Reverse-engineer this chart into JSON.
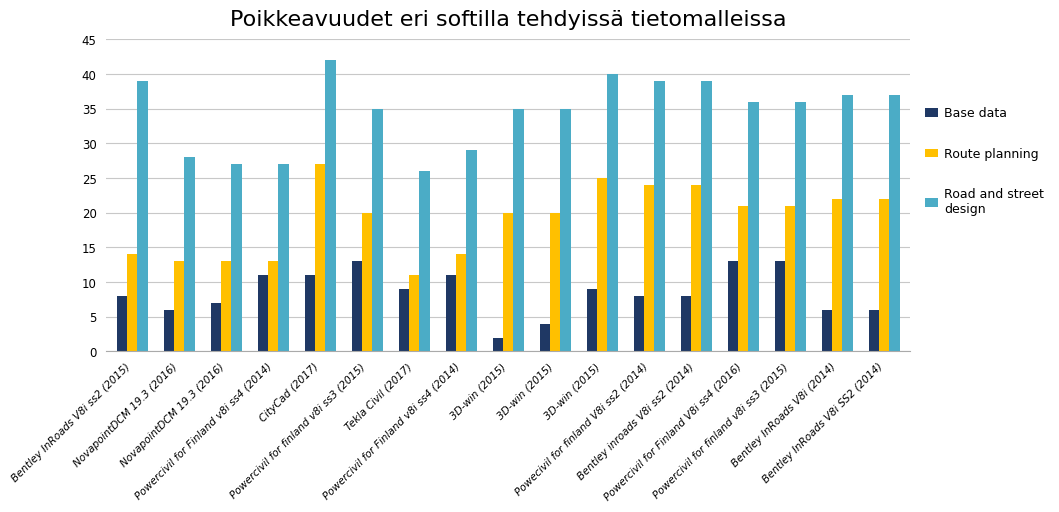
{
  "title": "Poikkeavuudet eri softilla tehdyissä tietomalleissa",
  "categories": [
    "Bentley InRoads V8i ss2 (2015)",
    "NovapointDCM 19.3 (2016)",
    "NovapointDCM 19.3 (2016)",
    "Powercivil for Finland v8i ss4 (2014)",
    "CityCad (2017)",
    "Powercivil for finland v8i ss3 (2015)",
    "Tekla Civil (2017)",
    "Powercivil for Finland v8i ss4 (2014)",
    "3D-win (2015)",
    "3D-win (2015)",
    "3D-win (2015)",
    "Powecivil for finland V8i ss2 (2014)",
    "Bentley inroads V8i ss2 (2014)",
    "Powercivil for Finland V8i ss4 (2016)",
    "Powercivil for finland v8i ss3 (2015)",
    "Bentley InRoads V8i (2014)",
    "Bentley InRoads V8i SS2 (2014)"
  ],
  "base_data": [
    8,
    6,
    7,
    11,
    11,
    13,
    9,
    11,
    2,
    4,
    9,
    8,
    8,
    13,
    13,
    6,
    6
  ],
  "route_planning": [
    14,
    13,
    13,
    13,
    27,
    20,
    11,
    14,
    20,
    20,
    25,
    24,
    24,
    21,
    21,
    22,
    22
  ],
  "road_street": [
    39,
    28,
    27,
    27,
    42,
    35,
    26,
    29,
    35,
    35,
    40,
    39,
    39,
    36,
    36,
    37,
    37
  ],
  "color_base": "#1f3864",
  "color_route": "#ffc000",
  "color_road": "#4bacc6",
  "ylim": [
    0,
    45
  ],
  "yticks": [
    0,
    5,
    10,
    15,
    20,
    25,
    30,
    35,
    40,
    45
  ],
  "bar_width": 0.22,
  "legend_labels": [
    "Base data",
    "Route planning",
    "Road and street\ndesign"
  ],
  "title_fontsize": 16,
  "tick_fontsize": 7.5,
  "legend_fontsize": 9,
  "background_color": "#ffffff",
  "grid_color": "#c8c8c8"
}
